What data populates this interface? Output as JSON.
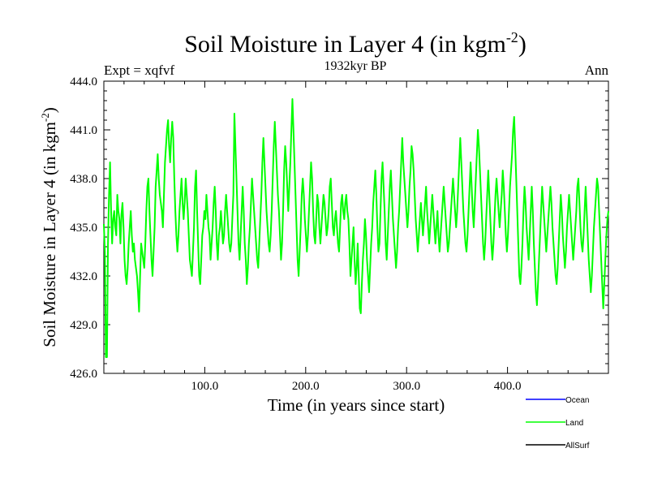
{
  "chart_data": {
    "type": "line",
    "title": "Soil Moisture in Layer 4 (in kgm",
    "title_sup": "-2",
    "title_close": ")",
    "subtitle": "1932kyr BP",
    "left_label": "Expt = xqfvf",
    "right_label": "Ann",
    "xlabel": "Time (in years since start)",
    "ylabel": "Soil Moisture in Layer 4 (in kgm",
    "ylabel_sup": "-2",
    "ylabel_close": ")",
    "xlim": [
      0,
      500
    ],
    "ylim": [
      426,
      444
    ],
    "x_ticks": [
      100,
      200,
      300,
      400
    ],
    "x_tick_labels": [
      "100.0",
      "200.0",
      "300.0",
      "400.0"
    ],
    "y_ticks": [
      426,
      429,
      432,
      435,
      438,
      441,
      444
    ],
    "y_tick_labels": [
      "426.0",
      "429.0",
      "432.0",
      "435.0",
      "438.0",
      "441.0",
      "444.0"
    ],
    "legend_position": "bottom-right",
    "series": [
      {
        "name": "Ocean",
        "color": "#0000ff",
        "values": []
      },
      {
        "name": "Land",
        "color": "#00ff00",
        "values": [
          435.2,
          433.5,
          427.0,
          427.0,
          434.0,
          437.0,
          439.0,
          436.0,
          434.0,
          435.5,
          436.0,
          435.0,
          434.5,
          437.0,
          436.0,
          435.5,
          434.0,
          435.8,
          436.5,
          435.0,
          433.0,
          432.0,
          431.5,
          432.5,
          434.0,
          435.0,
          436.0,
          434.5,
          433.5,
          434.0,
          433.0,
          432.5,
          432.0,
          431.0,
          429.8,
          432.0,
          434.0,
          433.5,
          433.0,
          432.5,
          434.0,
          436.0,
          437.5,
          438.0,
          436.0,
          434.5,
          433.0,
          432.0,
          433.5,
          435.0,
          437.5,
          438.5,
          439.5,
          438.0,
          437.0,
          436.5,
          436.0,
          435.0,
          437.0,
          439.0,
          440.0,
          441.0,
          441.6,
          440.0,
          439.0,
          440.5,
          441.5,
          440.5,
          438.0,
          436.0,
          434.5,
          433.5,
          434.5,
          436.0,
          437.0,
          438.0,
          436.5,
          435.5,
          436.5,
          438.0,
          437.0,
          436.0,
          434.5,
          433.0,
          432.5,
          432.0,
          433.5,
          435.0,
          437.5,
          438.5,
          436.0,
          434.0,
          432.0,
          431.5,
          433.0,
          434.5,
          435.0,
          436.0,
          435.5,
          437.0,
          436.0,
          435.0,
          434.5,
          433.0,
          434.0,
          435.0,
          436.5,
          437.5,
          436.0,
          434.0,
          433.0,
          434.5,
          435.0,
          436.0,
          435.0,
          434.0,
          434.5,
          436.0,
          437.0,
          436.0,
          435.0,
          434.0,
          433.5,
          434.0,
          435.5,
          437.0,
          442.0,
          440.0,
          438.0,
          436.0,
          434.0,
          433.0,
          434.5,
          436.0,
          437.5,
          436.0,
          434.0,
          433.0,
          431.5,
          432.5,
          434.0,
          435.0,
          436.5,
          438.0,
          437.0,
          436.0,
          435.0,
          434.0,
          433.0,
          432.5,
          434.0,
          435.5,
          437.0,
          439.0,
          440.5,
          439.0,
          437.5,
          436.0,
          435.0,
          434.0,
          433.5,
          434.5,
          436.0,
          438.0,
          440.0,
          441.5,
          440.0,
          438.5,
          437.0,
          436.0,
          434.5,
          433.0,
          434.0,
          436.0,
          438.5,
          440.0,
          439.0,
          437.5,
          436.0,
          437.5,
          439.0,
          441.0,
          442.9,
          441.0,
          439.0,
          437.0,
          435.0,
          433.0,
          432.0,
          433.5,
          435.0,
          437.0,
          438.0,
          437.0,
          435.5,
          434.5,
          433.5,
          434.5,
          436.0,
          437.5,
          439.0,
          438.0,
          436.0,
          434.5,
          434.0,
          435.5,
          437.0,
          436.5,
          435.0,
          434.0,
          435.0,
          436.0,
          437.0,
          436.5,
          435.5,
          434.5,
          435.0,
          436.0,
          437.5,
          438.0,
          436.5,
          435.0,
          434.5,
          435.5,
          436.0,
          435.0,
          434.0,
          433.5,
          435.0,
          436.5,
          437.0,
          436.0,
          435.5,
          436.5,
          437.0,
          436.0,
          435.5,
          434.0,
          432.0,
          433.0,
          434.0,
          435.0,
          433.0,
          431.5,
          432.5,
          434.0,
          432.0,
          430.0,
          429.7,
          431.5,
          433.0,
          434.0,
          435.5,
          434.5,
          433.0,
          432.0,
          431.0,
          432.5,
          434.0,
          435.0,
          436.5,
          437.5,
          438.5,
          437.0,
          435.0,
          433.5,
          434.0,
          436.0,
          438.0,
          439.0,
          437.5,
          436.0,
          434.0,
          433.0,
          434.5,
          436.0,
          437.5,
          438.5,
          437.0,
          435.5,
          434.5,
          433.5,
          432.5,
          433.5,
          435.0,
          436.0,
          437.5,
          439.0,
          440.5,
          439.0,
          438.0,
          437.0,
          436.0,
          435.0,
          436.0,
          437.5,
          438.5,
          440.0,
          439.5,
          438.5,
          437.0,
          435.5,
          434.5,
          433.5,
          434.5,
          435.5,
          436.5,
          435.5,
          434.5,
          435.5,
          436.5,
          437.5,
          436.0,
          435.0,
          434.0,
          435.0,
          436.0,
          437.0,
          436.0,
          435.0,
          434.0,
          435.0,
          436.0,
          434.5,
          433.5,
          434.5,
          435.5,
          436.5,
          437.5,
          436.5,
          435.5,
          434.5,
          433.5,
          434.0,
          435.0,
          436.0,
          437.0,
          438.0,
          437.0,
          436.0,
          435.0,
          436.0,
          437.5,
          439.0,
          440.5,
          439.0,
          437.5,
          436.0,
          435.0,
          434.0,
          433.5,
          434.5,
          436.0,
          437.5,
          439.0,
          437.5,
          436.0,
          435.0,
          436.5,
          438.0,
          439.5,
          441.0,
          440.0,
          438.5,
          437.0,
          435.5,
          434.0,
          433.0,
          434.0,
          435.5,
          437.0,
          438.5,
          437.0,
          435.5,
          434.0,
          433.0,
          434.0,
          435.5,
          437.0,
          438.0,
          437.0,
          436.0,
          435.0,
          436.0,
          437.0,
          438.5,
          437.5,
          436.0,
          434.5,
          433.5,
          434.5,
          436.0,
          437.5,
          438.5,
          439.5,
          441.0,
          441.8,
          440.0,
          438.0,
          436.0,
          434.0,
          432.0,
          431.5,
          432.5,
          434.0,
          436.0,
          437.5,
          436.5,
          435.0,
          434.0,
          433.0,
          434.5,
          436.0,
          437.5,
          436.0,
          434.0,
          432.5,
          431.0,
          430.2,
          431.5,
          433.0,
          434.5,
          436.0,
          437.5,
          436.5,
          435.5,
          434.5,
          433.5,
          434.5,
          435.5,
          436.5,
          437.5,
          436.5,
          435.0,
          434.0,
          433.0,
          432.0,
          431.5,
          432.5,
          434.0,
          435.5,
          437.0,
          436.0,
          434.5,
          433.5,
          432.5,
          433.5,
          435.0,
          436.0,
          437.0,
          436.0,
          435.0,
          434.0,
          433.0,
          434.0,
          435.0,
          436.0,
          437.5,
          438.0,
          436.5,
          435.0,
          434.0,
          433.5,
          434.5,
          436.0,
          437.5,
          436.0,
          434.5,
          433.0,
          432.0,
          431.0,
          432.0,
          433.5,
          435.0,
          436.0,
          437.0,
          438.0,
          437.5,
          436.0,
          434.5,
          433.0,
          431.5,
          430.0,
          431.5,
          433.0,
          434.5,
          435.5,
          436.0
        ]
      },
      {
        "name": "AllSurf",
        "color": "#000000",
        "values": []
      }
    ]
  }
}
